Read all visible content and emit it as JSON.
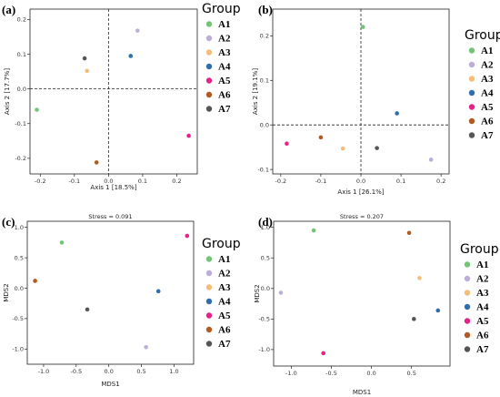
{
  "group_title": "Group",
  "colors": {
    "A1": "#74c476",
    "A2": "#bcaed8",
    "A3": "#f5bd78",
    "A4": "#2f6eac",
    "A5": "#e7218a",
    "A6": "#b35a1f",
    "A7": "#555555"
  },
  "chart_data": [
    {
      "type": "scatter",
      "label": "(a)",
      "title": "",
      "xlabel": "Axis 1 [18.5%]",
      "ylabel": "Axis 2 [17.7%]",
      "xlim": [
        -0.23,
        0.26
      ],
      "ylim": [
        -0.245,
        0.23
      ],
      "xticks": [
        -0.2,
        -0.1,
        0.0,
        0.1,
        0.2
      ],
      "xtick_labels": [
        "-0.2",
        "-0.1",
        "0.0",
        "0.1",
        "0.2"
      ],
      "yticks": [
        -0.2,
        -0.1,
        0.0,
        0.1,
        0.2
      ],
      "ytick_labels": [
        "-0.2",
        "-0.1",
        "0.0",
        "0.1",
        "0.2"
      ],
      "zero_lines": true,
      "legend_title": "Group",
      "legend_position": "right",
      "points": [
        {
          "group": "A1",
          "x": -0.21,
          "y": -0.06
        },
        {
          "group": "A2",
          "x": 0.085,
          "y": 0.168
        },
        {
          "group": "A3",
          "x": -0.063,
          "y": 0.052
        },
        {
          "group": "A4",
          "x": 0.065,
          "y": 0.095
        },
        {
          "group": "A5",
          "x": 0.235,
          "y": -0.135
        },
        {
          "group": "A6",
          "x": -0.035,
          "y": -0.212
        },
        {
          "group": "A7",
          "x": -0.07,
          "y": 0.088
        }
      ]
    },
    {
      "type": "scatter",
      "label": "(b)",
      "title": "",
      "xlabel": "Axis 1 [26.1%]",
      "ylabel": "Axis 2 [19.1%]",
      "xlim": [
        -0.22,
        0.22
      ],
      "ylim": [
        -0.11,
        0.26
      ],
      "xticks": [
        -0.2,
        -0.1,
        0.0,
        0.1,
        0.2
      ],
      "xtick_labels": [
        "-0.2",
        "-0.1",
        "0.0",
        "0.1",
        "0.2"
      ],
      "yticks": [
        -0.1,
        0.0,
        0.1,
        0.2
      ],
      "ytick_labels": [
        "-0.1",
        "0.0",
        "0.1",
        "0.2"
      ],
      "zero_lines": true,
      "legend_title": "Group",
      "legend_position": "right",
      "points": [
        {
          "group": "A1",
          "x": 0.005,
          "y": 0.22
        },
        {
          "group": "A2",
          "x": 0.175,
          "y": -0.078
        },
        {
          "group": "A3",
          "x": -0.045,
          "y": -0.053
        },
        {
          "group": "A4",
          "x": 0.09,
          "y": 0.026
        },
        {
          "group": "A5",
          "x": -0.185,
          "y": -0.042
        },
        {
          "group": "A6",
          "x": -0.1,
          "y": -0.028
        },
        {
          "group": "A7",
          "x": 0.04,
          "y": -0.052
        }
      ]
    },
    {
      "type": "scatter",
      "label": "(c)",
      "title": "Stress = 0.091",
      "xlabel": "MDS1",
      "ylabel": "MDS2",
      "xlim": [
        -1.25,
        1.3
      ],
      "ylim": [
        -1.25,
        1.1
      ],
      "xticks": [
        -1.0,
        -0.5,
        0.0,
        0.5,
        1.0
      ],
      "xtick_labels": [
        "-1.0",
        "-0.5",
        "0.0",
        "0.5",
        "1.0"
      ],
      "yticks": [
        -1.0,
        -0.5,
        0.0,
        0.5,
        1.0
      ],
      "ytick_labels": [
        "-1.0",
        "-0.5",
        "0.0",
        "0.5",
        "1.0"
      ],
      "zero_lines": false,
      "legend_title": "Group",
      "legend_position": "right",
      "points": [
        {
          "group": "A1",
          "x": -0.72,
          "y": 0.75
        },
        {
          "group": "A2",
          "x": 0.57,
          "y": -0.97
        },
        {
          "group": "A3",
          "x": -1.13,
          "y": 0.12
        },
        {
          "group": "A4",
          "x": 0.76,
          "y": -0.05
        },
        {
          "group": "A5",
          "x": 1.2,
          "y": 0.86
        },
        {
          "group": "A6",
          "x": -1.13,
          "y": 0.12
        },
        {
          "group": "A7",
          "x": -0.33,
          "y": -0.35
        }
      ]
    },
    {
      "type": "scatter",
      "label": "(d)",
      "title": "Stress = 0.207",
      "xlabel": "MDS1",
      "ylabel": "MDS2",
      "xlim": [
        -1.22,
        0.98
      ],
      "ylim": [
        -1.27,
        1.1
      ],
      "xticks": [
        -1.0,
        -0.5,
        0.0,
        0.5
      ],
      "xtick_labels": [
        "-1.0",
        "-0.5",
        "0.0",
        "0.5"
      ],
      "yticks": [
        -1.0,
        -0.5,
        0.0,
        0.5,
        1.0
      ],
      "ytick_labels": [
        "-1.0",
        "-0.5",
        "0.0",
        "0.5",
        "1.0"
      ],
      "zero_lines": false,
      "legend_title": "Group",
      "legend_position": "right",
      "points": [
        {
          "group": "A1",
          "x": -0.72,
          "y": 0.95
        },
        {
          "group": "A2",
          "x": -1.13,
          "y": -0.07
        },
        {
          "group": "A3",
          "x": 0.6,
          "y": 0.17
        },
        {
          "group": "A4",
          "x": 0.83,
          "y": -0.36
        },
        {
          "group": "A5",
          "x": -0.6,
          "y": -1.06
        },
        {
          "group": "A6",
          "x": 0.47,
          "y": 0.91
        },
        {
          "group": "A7",
          "x": 0.53,
          "y": -0.5
        }
      ]
    }
  ]
}
